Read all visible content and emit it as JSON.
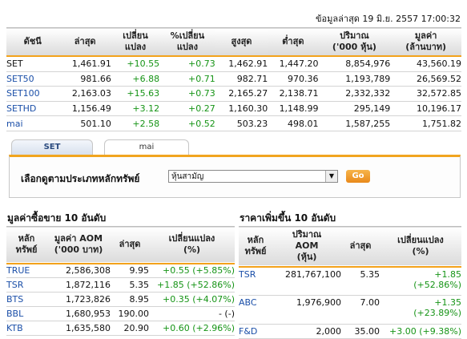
{
  "header": {
    "updated": "ข้อมูลล่าสุด 19 มิ.ย. 2557 17:00:32"
  },
  "market_table": {
    "columns": [
      "ดัชนี",
      "ล่าสุด",
      "เปลี่ยน\nแปลง",
      "%เปลี่ยน\nแปลง",
      "สูงสุด",
      "ต่ำสุด",
      "ปริมาณ\n('000 หุ้น)",
      "มูลค่า\n(ล้านบาท)"
    ],
    "rows": [
      [
        "SET",
        "1,461.91",
        "+10.55",
        "+0.73",
        "1,462.91",
        "1,447.20",
        "8,854,976",
        "43,560.19"
      ],
      [
        "SET50",
        "981.66",
        "+6.88",
        "+0.71",
        "982.71",
        "970.36",
        "1,193,789",
        "26,569.52"
      ],
      [
        "SET100",
        "2,163.03",
        "+15.63",
        "+0.73",
        "2,165.27",
        "2,138.71",
        "2,332,332",
        "32,572.85"
      ],
      [
        "SETHD",
        "1,156.49",
        "+3.12",
        "+0.27",
        "1,160.30",
        "1,148.99",
        "295,149",
        "10,196.17"
      ],
      [
        "mai",
        "501.10",
        "+2.58",
        "+0.52",
        "503.23",
        "498.01",
        "1,587,255",
        "1,751.82"
      ]
    ]
  },
  "tabs": [
    {
      "label": "SET"
    },
    {
      "label": "mai"
    }
  ],
  "filter": {
    "label": "เลือกดูตามประเภทหลักทรัพย์",
    "selected": "หุ้นสามัญ",
    "go_label": "Go"
  },
  "top_value": {
    "title": "มูลค่าซื้อขาย 10 อันดับ",
    "columns": [
      "หลัก\nทรัพย์",
      "มูลค่า AOM\n('000 บาท)",
      "ล่าสุด",
      "เปลี่ยนแปลง\n(%)"
    ],
    "rows": [
      [
        "TRUE",
        "2,586,308",
        "9.95",
        "+0.55 (+5.85%)"
      ],
      [
        "TSR",
        "1,872,116",
        "5.35",
        "+1.85 (+52.86%)"
      ],
      [
        "BTS",
        "1,723,826",
        "8.95",
        "+0.35 (+4.07%)"
      ],
      [
        "BBL",
        "1,680,953",
        "190.00",
        "- (-)"
      ],
      [
        "KTB",
        "1,635,580",
        "20.90",
        "+0.60 (+2.96%)"
      ]
    ]
  },
  "top_gainers": {
    "title": "ราคาเพิ่มขึ้น 10 อันดับ",
    "columns": [
      "หลัก\nทรัพย์",
      "ปริมาณ\nAOM\n(หุ้น)",
      "ล่าสุด",
      "เปลี่ยนแปลง\n(%)"
    ],
    "rows": [
      [
        "TSR",
        "281,767,100",
        "5.35",
        "+1.85",
        "(+52.86%)"
      ],
      [
        "ABC",
        "1,976,900",
        "7.00",
        "+1.35",
        "(+23.89%)"
      ],
      [
        "F&D",
        "2,000",
        "35.00",
        "+3.00 (+9.38%)",
        ""
      ]
    ]
  },
  "colors": {
    "positive": "#169416",
    "symbol": "#1b4fa8",
    "accent": "#f3a21b"
  }
}
